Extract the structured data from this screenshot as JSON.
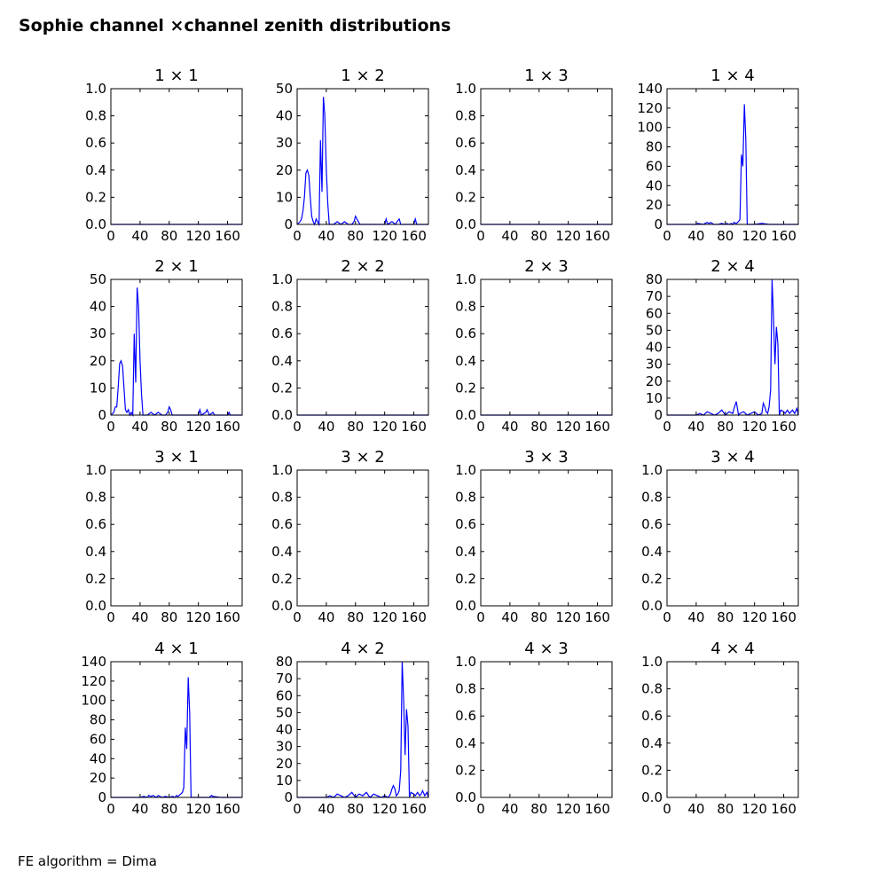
{
  "title": "Sophie channel ×channel zenith distributions",
  "footer": "FE algorithm = Dima",
  "colors": {
    "line": "#0000ff",
    "axes": "#000000",
    "background": "#ffffff"
  },
  "chart_data": [
    {
      "type": "line",
      "title": "1  × 1",
      "xlim": [
        0,
        180
      ],
      "ylim": [
        0,
        1
      ],
      "xticks": [
        0,
        40,
        80,
        120,
        160
      ],
      "yticks": [
        0.0,
        0.2,
        0.4,
        0.6,
        0.8,
        1.0
      ],
      "ytick_decimals": 1,
      "series": [
        {
          "x": [
            0,
            180
          ],
          "y": [
            0,
            0
          ]
        }
      ]
    },
    {
      "type": "line",
      "title": "1  × 2",
      "xlim": [
        0,
        180
      ],
      "ylim": [
        0,
        50
      ],
      "xticks": [
        0,
        40,
        80,
        120,
        160
      ],
      "yticks": [
        0,
        10,
        20,
        30,
        40,
        50
      ],
      "ytick_decimals": 0,
      "series": [
        {
          "x": [
            0,
            4,
            6,
            8,
            10,
            12,
            14,
            16,
            18,
            20,
            22,
            24,
            26,
            28,
            30,
            32,
            34,
            36,
            38,
            40,
            42,
            44,
            46,
            48,
            50,
            55,
            60,
            65,
            70,
            75,
            78,
            80,
            82,
            84,
            86,
            90,
            100,
            120,
            122,
            124,
            130,
            135,
            137,
            140,
            142,
            150,
            160,
            162,
            164,
            166,
            180
          ],
          "y": [
            0,
            1,
            2,
            5,
            10,
            19,
            20,
            18,
            10,
            3,
            1,
            0,
            2,
            1,
            0,
            31,
            12,
            47,
            40,
            20,
            8,
            0,
            0,
            0,
            0,
            1,
            0,
            1,
            0,
            0,
            1,
            3,
            2,
            1,
            0,
            0,
            0,
            0,
            2,
            0,
            1,
            0,
            1,
            2,
            0,
            0,
            0,
            2,
            0,
            0,
            0
          ]
        }
      ]
    },
    {
      "type": "line",
      "title": "1  × 3",
      "xlim": [
        0,
        180
      ],
      "ylim": [
        0,
        1
      ],
      "xticks": [
        0,
        40,
        80,
        120,
        160
      ],
      "yticks": [
        0.0,
        0.2,
        0.4,
        0.6,
        0.8,
        1.0
      ],
      "ytick_decimals": 1,
      "series": [
        {
          "x": [
            0,
            180
          ],
          "y": [
            0,
            0
          ]
        }
      ]
    },
    {
      "type": "line",
      "title": "1  × 4",
      "xlim": [
        0,
        180
      ],
      "ylim": [
        0,
        140
      ],
      "xticks": [
        0,
        40,
        80,
        120,
        160
      ],
      "yticks": [
        0,
        20,
        40,
        60,
        80,
        100,
        120,
        140
      ],
      "ytick_decimals": 0,
      "series": [
        {
          "x": [
            0,
            40,
            42,
            50,
            52,
            55,
            58,
            60,
            62,
            64,
            70,
            75,
            80,
            82,
            85,
            88,
            90,
            92,
            95,
            98,
            100,
            102,
            104,
            106,
            108,
            110,
            112,
            120,
            130,
            140,
            150,
            160,
            170,
            180
          ],
          "y": [
            0,
            0,
            1,
            0,
            1,
            2,
            1,
            2,
            1,
            0,
            0,
            1,
            0,
            1,
            0,
            1,
            0,
            2,
            1,
            3,
            5,
            72,
            60,
            124,
            88,
            0,
            0,
            0,
            1,
            0,
            0,
            0,
            0,
            0
          ]
        }
      ]
    },
    {
      "type": "line",
      "title": "2  × 1",
      "xlim": [
        0,
        180
      ],
      "ylim": [
        0,
        50
      ],
      "xticks": [
        0,
        40,
        80,
        120,
        160
      ],
      "yticks": [
        0,
        10,
        20,
        30,
        40,
        50
      ],
      "ytick_decimals": 0,
      "series": [
        {
          "x": [
            0,
            4,
            6,
            8,
            10,
            12,
            14,
            16,
            18,
            20,
            22,
            24,
            26,
            28,
            30,
            32,
            34,
            36,
            38,
            40,
            42,
            44,
            50,
            55,
            60,
            65,
            70,
            75,
            78,
            80,
            82,
            84,
            90,
            100,
            120,
            122,
            124,
            130,
            132,
            135,
            140,
            142,
            150,
            160,
            162,
            164,
            180
          ],
          "y": [
            0,
            1,
            3,
            3,
            10,
            19,
            20,
            18,
            10,
            2,
            1,
            2,
            0,
            1,
            0,
            30,
            12,
            47,
            40,
            20,
            8,
            0,
            0,
            1,
            0,
            1,
            0,
            0,
            1,
            3,
            2,
            0,
            0,
            0,
            0,
            2,
            0,
            1,
            2,
            0,
            1,
            0,
            0,
            0,
            1,
            0,
            0
          ]
        }
      ]
    },
    {
      "type": "line",
      "title": "2  × 2",
      "xlim": [
        0,
        180
      ],
      "ylim": [
        0,
        1
      ],
      "xticks": [
        0,
        40,
        80,
        120,
        160
      ],
      "yticks": [
        0.0,
        0.2,
        0.4,
        0.6,
        0.8,
        1.0
      ],
      "ytick_decimals": 1,
      "series": [
        {
          "x": [
            0,
            180
          ],
          "y": [
            0,
            0
          ]
        }
      ]
    },
    {
      "type": "line",
      "title": "2  × 3",
      "xlim": [
        0,
        180
      ],
      "ylim": [
        0,
        1
      ],
      "xticks": [
        0,
        40,
        80,
        120,
        160
      ],
      "yticks": [
        0.0,
        0.2,
        0.4,
        0.6,
        0.8,
        1.0
      ],
      "ytick_decimals": 1,
      "series": [
        {
          "x": [
            0,
            180
          ],
          "y": [
            0,
            0
          ]
        }
      ]
    },
    {
      "type": "line",
      "title": "2  × 4",
      "xlim": [
        0,
        180
      ],
      "ylim": [
        0,
        80
      ],
      "xticks": [
        0,
        40,
        80,
        120,
        160
      ],
      "yticks": [
        0,
        10,
        20,
        30,
        40,
        50,
        60,
        70,
        80
      ],
      "ytick_decimals": 0,
      "series": [
        {
          "x": [
            0,
            40,
            45,
            50,
            55,
            60,
            65,
            70,
            75,
            80,
            85,
            90,
            92,
            95,
            98,
            100,
            105,
            110,
            115,
            120,
            125,
            130,
            132,
            134,
            136,
            138,
            140,
            142,
            144,
            146,
            148,
            150,
            152,
            154,
            156,
            160,
            162,
            165,
            168,
            170,
            172,
            175,
            178,
            180
          ],
          "y": [
            0,
            0,
            1,
            0,
            2,
            1,
            0,
            1,
            3,
            0,
            2,
            1,
            4,
            8,
            0,
            1,
            2,
            0,
            1,
            2,
            0,
            1,
            7,
            5,
            2,
            1,
            5,
            15,
            80,
            58,
            30,
            52,
            42,
            0,
            3,
            2,
            1,
            3,
            1,
            2,
            3,
            1,
            4,
            0
          ]
        }
      ]
    },
    {
      "type": "line",
      "title": "3  × 1",
      "xlim": [
        0,
        180
      ],
      "ylim": [
        0,
        1
      ],
      "xticks": [
        0,
        40,
        80,
        120,
        160
      ],
      "yticks": [
        0.0,
        0.2,
        0.4,
        0.6,
        0.8,
        1.0
      ],
      "ytick_decimals": 1,
      "series": []
    },
    {
      "type": "line",
      "title": "3  × 2",
      "xlim": [
        0,
        180
      ],
      "ylim": [
        0,
        1
      ],
      "xticks": [
        0,
        40,
        80,
        120,
        160
      ],
      "yticks": [
        0.0,
        0.2,
        0.4,
        0.6,
        0.8,
        1.0
      ],
      "ytick_decimals": 1,
      "series": []
    },
    {
      "type": "line",
      "title": "3  × 3",
      "xlim": [
        0,
        180
      ],
      "ylim": [
        0,
        1
      ],
      "xticks": [
        0,
        40,
        80,
        120,
        160
      ],
      "yticks": [
        0.0,
        0.2,
        0.4,
        0.6,
        0.8,
        1.0
      ],
      "ytick_decimals": 1,
      "series": []
    },
    {
      "type": "line",
      "title": "3  × 4",
      "xlim": [
        0,
        180
      ],
      "ylim": [
        0,
        1
      ],
      "xticks": [
        0,
        40,
        80,
        120,
        160
      ],
      "yticks": [
        0.0,
        0.2,
        0.4,
        0.6,
        0.8,
        1.0
      ],
      "ytick_decimals": 1,
      "series": []
    },
    {
      "type": "line",
      "title": "4  × 1",
      "xlim": [
        0,
        180
      ],
      "ylim": [
        0,
        140
      ],
      "xticks": [
        0,
        40,
        80,
        120,
        160
      ],
      "yticks": [
        0,
        20,
        40,
        60,
        80,
        100,
        120,
        140
      ],
      "ytick_decimals": 0,
      "series": [
        {
          "x": [
            0,
            40,
            45,
            50,
            52,
            55,
            58,
            60,
            62,
            65,
            70,
            75,
            80,
            85,
            88,
            90,
            92,
            95,
            98,
            100,
            102,
            104,
            106,
            108,
            110,
            112,
            120,
            135,
            138,
            140,
            150,
            180
          ],
          "y": [
            0,
            0,
            1,
            0,
            2,
            1,
            2,
            1,
            0,
            2,
            0,
            1,
            0,
            1,
            0,
            2,
            1,
            3,
            5,
            10,
            72,
            50,
            124,
            88,
            0,
            0,
            0,
            0,
            2,
            1,
            0,
            0
          ]
        }
      ]
    },
    {
      "type": "line",
      "title": "4  × 2",
      "xlim": [
        0,
        180
      ],
      "ylim": [
        0,
        80
      ],
      "xticks": [
        0,
        40,
        80,
        120,
        160
      ],
      "yticks": [
        0,
        10,
        20,
        30,
        40,
        50,
        60,
        70,
        80
      ],
      "ytick_decimals": 0,
      "series": [
        {
          "x": [
            0,
            40,
            45,
            50,
            55,
            60,
            65,
            70,
            75,
            80,
            85,
            90,
            95,
            98,
            100,
            105,
            110,
            115,
            120,
            125,
            128,
            130,
            132,
            134,
            136,
            138,
            140,
            142,
            144,
            146,
            148,
            150,
            152,
            154,
            156,
            160,
            162,
            165,
            168,
            170,
            172,
            175,
            178,
            180
          ],
          "y": [
            0,
            0,
            1,
            0,
            2,
            1,
            0,
            1,
            3,
            0,
            2,
            1,
            3,
            1,
            0,
            2,
            1,
            0,
            1,
            0,
            2,
            5,
            7,
            5,
            1,
            2,
            4,
            16,
            80,
            58,
            25,
            52,
            42,
            0,
            3,
            2,
            1,
            3,
            1,
            2,
            4,
            1,
            3,
            0
          ]
        }
      ]
    },
    {
      "type": "line",
      "title": "4  × 3",
      "xlim": [
        0,
        180
      ],
      "ylim": [
        0,
        1
      ],
      "xticks": [
        0,
        40,
        80,
        120,
        160
      ],
      "yticks": [
        0.0,
        0.2,
        0.4,
        0.6,
        0.8,
        1.0
      ],
      "ytick_decimals": 1,
      "series": []
    },
    {
      "type": "line",
      "title": "4  × 4",
      "xlim": [
        0,
        180
      ],
      "ylim": [
        0,
        1
      ],
      "xticks": [
        0,
        40,
        80,
        120,
        160
      ],
      "yticks": [
        0.0,
        0.2,
        0.4,
        0.6,
        0.8,
        1.0
      ],
      "ytick_decimals": 1,
      "series": []
    }
  ]
}
